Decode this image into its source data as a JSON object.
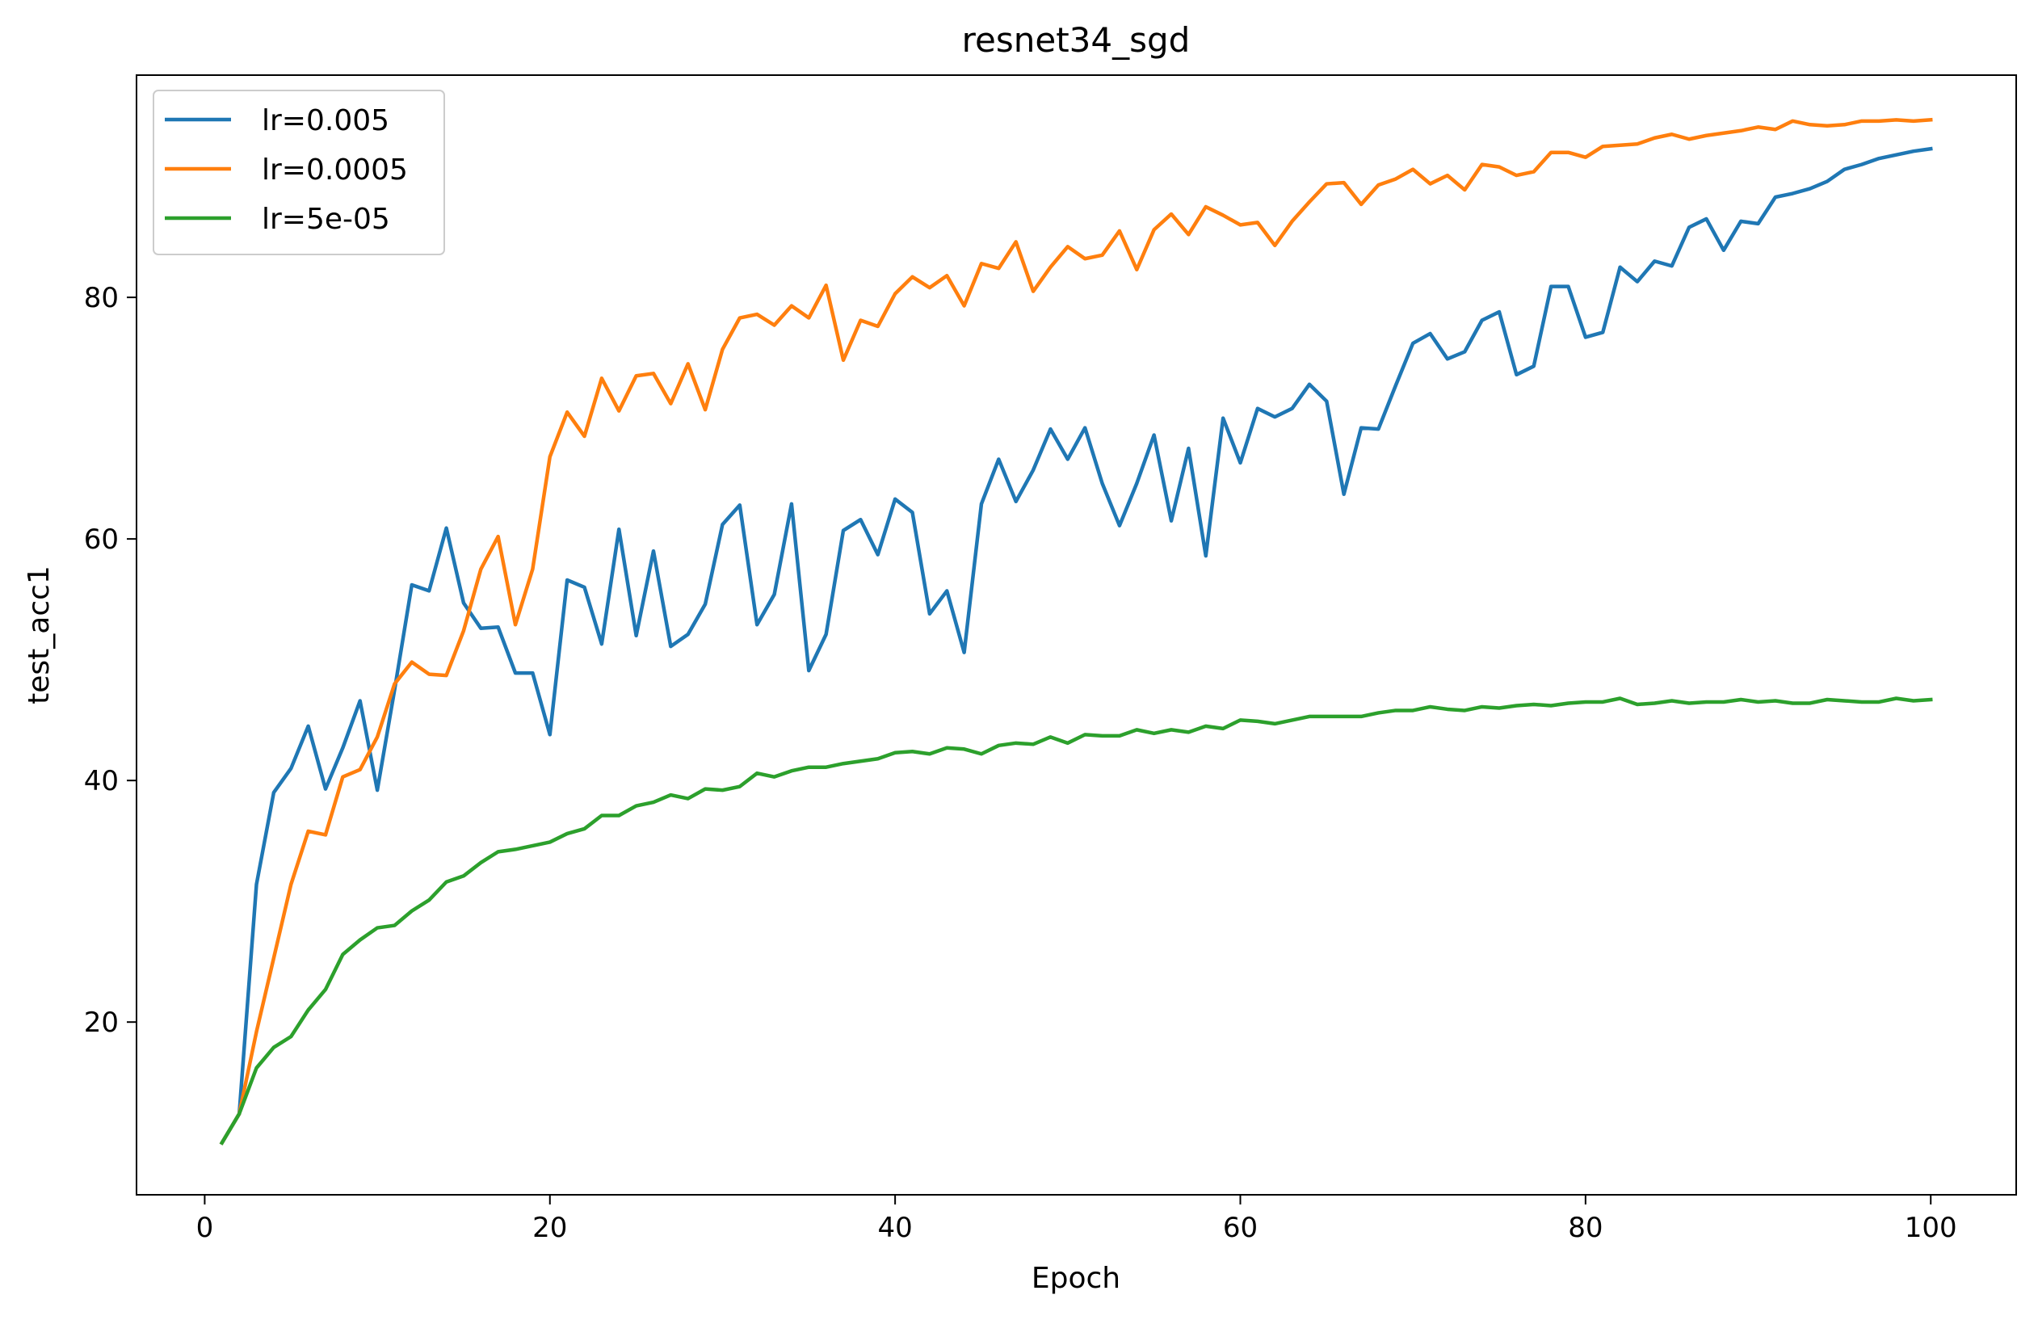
{
  "chart_data": {
    "type": "line",
    "title": "resnet34_sgd",
    "xlabel": "Epoch",
    "ylabel": "test_acc1",
    "xlim": [
      -3.95,
      104.95
    ],
    "ylim": [
      5.7,
      98.4
    ],
    "xticks": [
      0,
      20,
      40,
      60,
      80,
      100
    ],
    "yticks": [
      20,
      40,
      60,
      80
    ],
    "grid": false,
    "legend": {
      "placement": "top-left"
    },
    "series": [
      {
        "name": "lr=0.005",
        "color": "#1f77b4",
        "values": [
          10.0,
          12.4,
          31.4,
          39.0,
          41.0,
          44.5,
          39.3,
          42.7,
          46.6,
          39.2,
          47.5,
          56.2,
          55.7,
          60.9,
          54.7,
          52.6,
          52.7,
          48.9,
          48.9,
          43.8,
          56.6,
          56.0,
          51.3,
          60.8,
          52.0,
          59.0,
          51.1,
          52.1,
          54.6,
          61.2,
          62.8,
          52.9,
          55.4,
          62.9,
          49.1,
          52.1,
          60.7,
          61.6,
          58.7,
          63.3,
          62.2,
          53.8,
          55.7,
          50.6,
          62.9,
          66.6,
          63.1,
          65.7,
          69.1,
          66.6,
          69.2,
          64.6,
          61.1,
          64.6,
          68.6,
          61.5,
          67.5,
          58.6,
          70.0,
          66.3,
          70.8,
          70.1,
          70.8,
          72.8,
          71.4,
          63.7,
          69.2,
          69.1,
          72.7,
          76.2,
          77.0,
          74.9,
          75.5,
          78.1,
          78.8,
          73.6,
          74.3,
          80.9,
          80.9,
          76.7,
          77.1,
          82.5,
          81.3,
          83.0,
          82.6,
          85.8,
          86.5,
          83.9,
          86.3,
          86.1,
          88.3,
          88.6,
          89.0,
          89.6,
          90.6,
          91.0,
          91.5,
          91.8,
          92.1,
          92.3
        ]
      },
      {
        "name": "lr=0.0005",
        "color": "#ff7f0e",
        "values": [
          10.0,
          12.4,
          19.2,
          25.3,
          31.4,
          35.8,
          35.5,
          40.3,
          40.9,
          43.6,
          48.0,
          49.8,
          48.8,
          48.7,
          52.4,
          57.5,
          60.2,
          52.9,
          57.5,
          66.8,
          70.5,
          68.5,
          73.3,
          70.6,
          73.5,
          73.7,
          71.2,
          74.5,
          70.7,
          75.7,
          78.3,
          78.6,
          77.7,
          79.3,
          78.3,
          81.0,
          74.8,
          78.1,
          77.6,
          80.3,
          81.7,
          80.8,
          81.8,
          79.3,
          82.8,
          82.4,
          84.6,
          80.5,
          82.5,
          84.2,
          83.2,
          83.5,
          85.5,
          82.3,
          85.6,
          86.9,
          85.2,
          87.5,
          86.8,
          86.0,
          86.2,
          84.3,
          86.3,
          87.9,
          89.4,
          89.5,
          87.7,
          89.3,
          89.8,
          90.6,
          89.4,
          90.1,
          88.9,
          91.0,
          90.8,
          90.1,
          90.4,
          92.0,
          92.0,
          91.6,
          92.5,
          92.6,
          92.7,
          93.2,
          93.5,
          93.1,
          93.4,
          93.6,
          93.8,
          94.1,
          93.9,
          94.6,
          94.3,
          94.2,
          94.3,
          94.6,
          94.6,
          94.7,
          94.6,
          94.7
        ]
      },
      {
        "name": "lr=5e-05",
        "color": "#2ca02c",
        "values": [
          10.0,
          12.4,
          16.2,
          17.9,
          18.8,
          21.0,
          22.7,
          25.6,
          26.8,
          27.8,
          28.0,
          29.2,
          30.1,
          31.6,
          32.1,
          33.2,
          34.1,
          34.3,
          34.6,
          34.9,
          35.6,
          36.0,
          37.1,
          37.1,
          37.9,
          38.2,
          38.8,
          38.5,
          39.3,
          39.2,
          39.5,
          40.6,
          40.3,
          40.8,
          41.1,
          41.1,
          41.4,
          41.6,
          41.8,
          42.3,
          42.4,
          42.2,
          42.7,
          42.6,
          42.2,
          42.9,
          43.1,
          43.0,
          43.6,
          43.1,
          43.8,
          43.7,
          43.7,
          44.2,
          43.9,
          44.2,
          44.0,
          44.5,
          44.3,
          45.0,
          44.9,
          44.7,
          45.0,
          45.3,
          45.3,
          45.3,
          45.3,
          45.6,
          45.8,
          45.8,
          46.1,
          45.9,
          45.8,
          46.1,
          46.0,
          46.2,
          46.3,
          46.2,
          46.4,
          46.5,
          46.5,
          46.8,
          46.3,
          46.4,
          46.6,
          46.4,
          46.5,
          46.5,
          46.7,
          46.5,
          46.6,
          46.4,
          46.4,
          46.7,
          46.6,
          46.5,
          46.5,
          46.8,
          46.6,
          46.7
        ]
      }
    ]
  }
}
